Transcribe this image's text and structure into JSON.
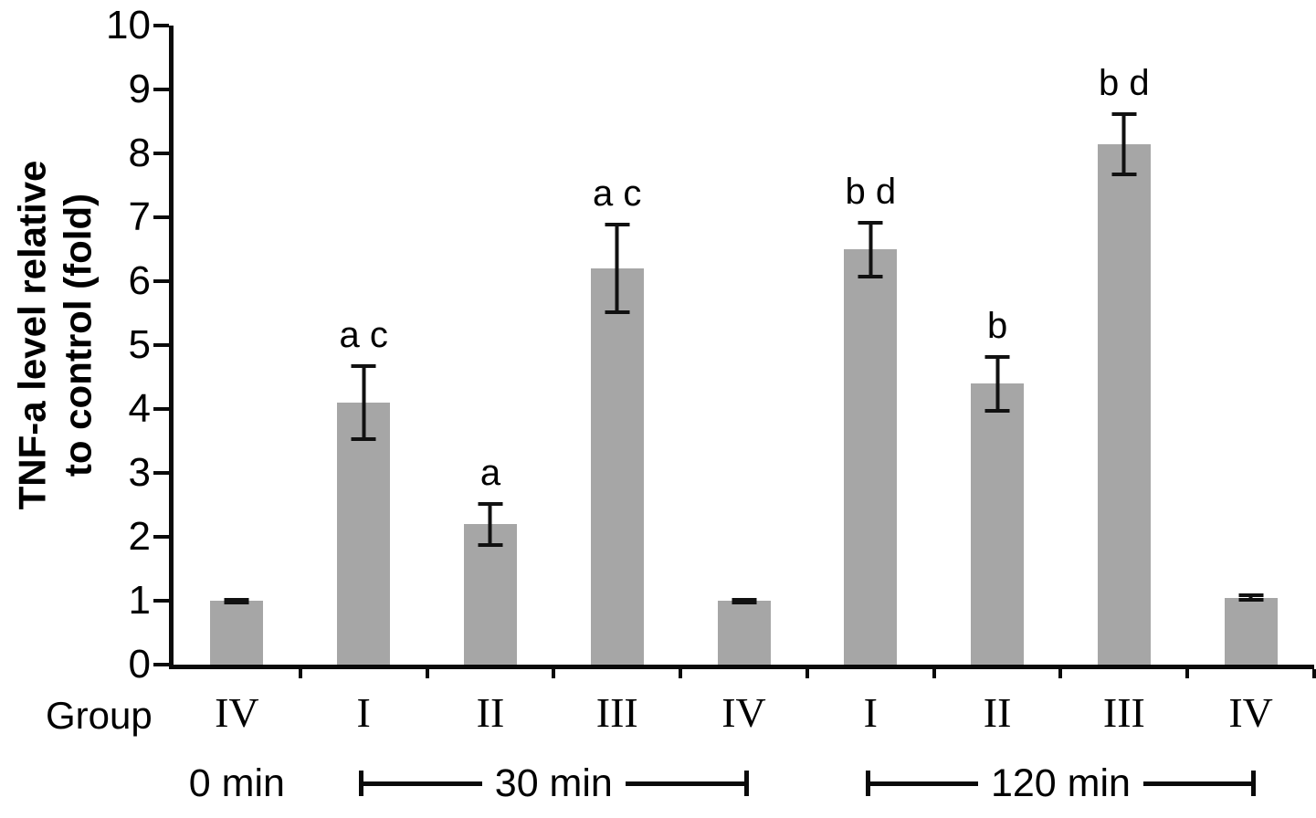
{
  "chart_data": {
    "type": "bar",
    "title": "",
    "ylabel": "TNF-a level relative\nto control (fold)",
    "group_axis_label": "Group",
    "ylim": [
      0,
      10
    ],
    "yticks": [
      0,
      1,
      2,
      3,
      4,
      5,
      6,
      7,
      8,
      9,
      10
    ],
    "bar_color": "#a6a6a6",
    "grid": false,
    "legend": "none",
    "bars": [
      {
        "group": "IV",
        "time": "0 min",
        "value": 1.0,
        "error": 0.05,
        "annotation": ""
      },
      {
        "group": "I",
        "time": "30 min",
        "value": 4.1,
        "error": 0.6,
        "annotation": "a c"
      },
      {
        "group": "II",
        "time": "30 min",
        "value": 2.2,
        "error": 0.35,
        "annotation": "a"
      },
      {
        "group": "III",
        "time": "30 min",
        "value": 6.2,
        "error": 0.72,
        "annotation": "a c"
      },
      {
        "group": "IV",
        "time": "30 min",
        "value": 1.0,
        "error": 0.05,
        "annotation": ""
      },
      {
        "group": "I",
        "time": "120 min",
        "value": 6.5,
        "error": 0.45,
        "annotation": "b d"
      },
      {
        "group": "II",
        "time": "120 min",
        "value": 4.4,
        "error": 0.45,
        "annotation": "b"
      },
      {
        "group": "III",
        "time": "120 min",
        "value": 8.15,
        "error": 0.5,
        "annotation": "b d"
      },
      {
        "group": "IV",
        "time": "120 min",
        "value": 1.05,
        "error": 0.07,
        "annotation": ""
      }
    ],
    "time_groups": [
      {
        "label": "0 min",
        "start": 0,
        "end": 0,
        "bracket": false
      },
      {
        "label": "30 min",
        "start": 1,
        "end": 4,
        "bracket": true
      },
      {
        "label": "120 min",
        "start": 5,
        "end": 8,
        "bracket": true
      }
    ]
  }
}
